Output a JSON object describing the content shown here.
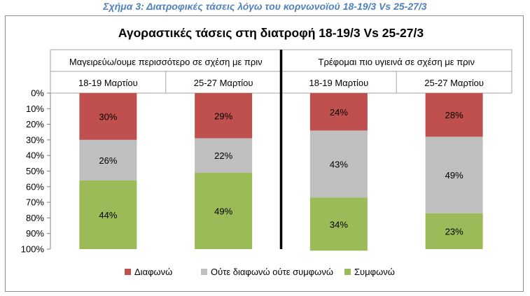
{
  "figure_caption": "Σχήμα 3: Διατροφικές τάσεις λόγω του κορνωνοϊού 18-19/3 Vs 25-27/3",
  "caption_color": "#4f81bd",
  "chart_data": {
    "type": "bar",
    "stacked": true,
    "percent_stacked": true,
    "title": "Αγοραστικές τάσεις στη διατροφή 18-19/3 Vs 25-27/3",
    "groups": [
      {
        "label": "Μαγειρεύω/ουμε περισσότερο σε σχέση με πριν",
        "categories": [
          "18-19 Μαρτίου",
          "25-27 Μαρτίου"
        ]
      },
      {
        "label": "Τρέφομαι πιο υγιεινά σε σχέση με πριν",
        "categories": [
          "18-19 Μαρτίου",
          "25-27 Μαρτίου"
        ]
      }
    ],
    "categories": [
      "18-19 Μαρτίου",
      "25-27 Μαρτίου",
      "18-19 Μαρτίου",
      "25-27 Μαρτίου"
    ],
    "series": [
      {
        "name": "Διαφωνώ",
        "color": "#c0504d",
        "values": [
          30,
          29,
          24,
          28
        ],
        "labels": [
          "30%",
          "29%",
          "24%",
          "28%"
        ]
      },
      {
        "name": "Ούτε διαφωνώ ούτε συμφωνώ",
        "color": "#bfbfbf",
        "values": [
          26,
          22,
          43,
          49
        ],
        "labels": [
          "26%",
          "22%",
          "43%",
          "49%"
        ]
      },
      {
        "name": "Συμφωνώ",
        "color": "#9bbb59",
        "values": [
          44,
          49,
          34,
          23
        ],
        "labels": [
          "44%",
          "49%",
          "34%",
          "23%"
        ]
      }
    ],
    "y_ticks": [
      "0%",
      "10%",
      "20%",
      "30%",
      "40%",
      "50%",
      "60%",
      "70%",
      "80%",
      "90%",
      "100%"
    ],
    "ylim": [
      0,
      100
    ],
    "y_axis_reversed": true,
    "grid": false,
    "legend_position": "bottom"
  }
}
